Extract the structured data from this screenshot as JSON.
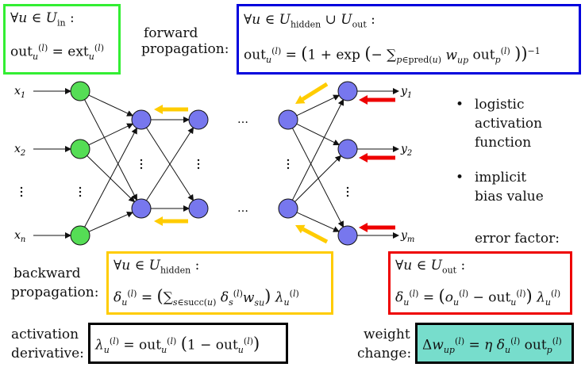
{
  "forward": {
    "label_line1": "forward",
    "label_line2": "propagation:",
    "input_box": {
      "line1": "∀u ∈ U_in :",
      "line2": "out_u^(l) = ext_u^(l)",
      "border_color": "#33ee33"
    },
    "hidden_out_box": {
      "line1": "∀u ∈ U_hidden ∪ U_out :",
      "line2": "out_u^(l) = (1 + exp(−∑_{p∈pred(u)} w_up out_p^(l)))^−1",
      "border_color": "#0000dd"
    }
  },
  "network": {
    "input_labels": [
      "x1",
      "x2",
      "xn"
    ],
    "output_labels": [
      "y1",
      "y2",
      "ym"
    ],
    "dots": "…",
    "input_color": "#55dd55",
    "hidden_color": "#7777ee",
    "forward_arrow_color": "#ffcc00",
    "error_arrow_color": "#ee0000"
  },
  "notes": {
    "bullet1_lines": [
      "logistic",
      "activation",
      "function"
    ],
    "bullet2_lines": [
      "implicit",
      "bias value"
    ],
    "error_factor": "error factor:"
  },
  "backward": {
    "label_line1": "backward",
    "label_line2": "propagation:",
    "hidden_box": {
      "line1": "∀u ∈ U_hidden :",
      "line2": "δ_u^(l) = (∑_{s∈succ(u)} δ_s^(l) w_su) λ_u^(l)",
      "border_color": "#ffcc00"
    },
    "out_box": {
      "line1": "∀u ∈ U_out :",
      "line2": "δ_u^(l) = (o_u^(l) − out_u^(l)) λ_u^(l)",
      "border_color": "#ee0000"
    }
  },
  "derivative": {
    "label_line1": "activation",
    "label_line2": "derivative:",
    "formula": "λ_u^(l) = out_u^(l) (1 − out_u^(l))",
    "border_color": "#000000"
  },
  "weight_change": {
    "label_line1": "weight",
    "label_line2": "change:",
    "formula": "Δw_up^(l) = η δ_u^(l) out_p^(l)",
    "border_color": "#000000",
    "fill_color": "#77ddcc"
  }
}
